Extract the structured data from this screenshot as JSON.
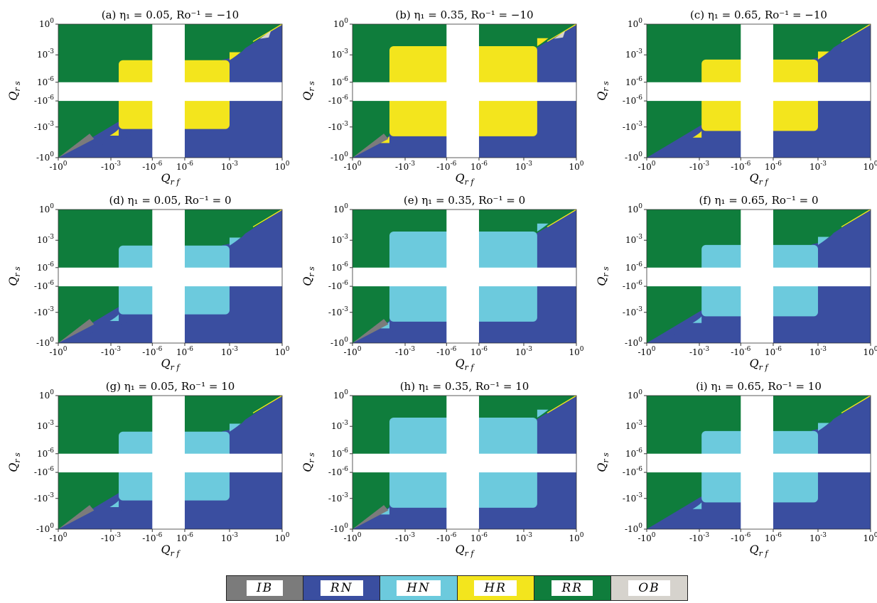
{
  "colors": {
    "IB": "#7b7b7b",
    "RN": "#3a4ea0",
    "HN": "#6ccadd",
    "HR": "#f3e51d",
    "RR": "#0f7d3c",
    "OB": "#d6d3cd",
    "gap": "#ffffff"
  },
  "legend": [
    {
      "key": "IB",
      "label": "IB"
    },
    {
      "key": "RN",
      "label": "RN"
    },
    {
      "key": "HN",
      "label": "HN"
    },
    {
      "key": "HR",
      "label": "HR"
    },
    {
      "key": "RR",
      "label": "RR"
    },
    {
      "key": "OB",
      "label": "OB"
    }
  ],
  "chart_data": [
    {
      "type": "heatmap",
      "panel": "a",
      "title": "(a) η₁ = 0.05, Ro⁻¹ = −10",
      "xlabel": "Q_rf",
      "ylabel": "Q_rs",
      "x_ticks": [
        "-10^0",
        "-10^-3",
        "-10^-6",
        "10^-6",
        "10^-3",
        "10^0"
      ],
      "y_ticks": [
        "10^0",
        "10^-3",
        "10^-6",
        "-10^-6",
        "-10^-3",
        "-10^0"
      ],
      "regions": [
        "IB",
        "RN",
        "HR",
        "RR",
        "OB"
      ],
      "middle_regime": "HR",
      "middle_extent": "narrow"
    },
    {
      "type": "heatmap",
      "panel": "b",
      "title": "(b) η₁ = 0.35, Ro⁻¹ = −10",
      "xlabel": "Q_rf",
      "ylabel": "Q_rs",
      "x_ticks": [
        "-10^0",
        "-10^-3",
        "-10^-6",
        "10^-6",
        "10^-3",
        "10^0"
      ],
      "y_ticks": [
        "10^0",
        "10^-3",
        "10^-6",
        "-10^-6",
        "-10^-3",
        "-10^0"
      ],
      "regions": [
        "IB",
        "RN",
        "HR",
        "RR",
        "OB"
      ],
      "middle_regime": "HR",
      "middle_extent": "wide"
    },
    {
      "type": "heatmap",
      "panel": "c",
      "title": "(c) η₁ = 0.65, Ro⁻¹ = −10",
      "xlabel": "Q_rf",
      "ylabel": "Q_rs",
      "x_ticks": [
        "-10^0",
        "-10^-3",
        "-10^-6",
        "10^-6",
        "10^-3",
        "10^0"
      ],
      "y_ticks": [
        "10^0",
        "10^-3",
        "10^-6",
        "-10^-6",
        "-10^-3",
        "-10^0"
      ],
      "regions": [
        "RN",
        "HR",
        "RR"
      ],
      "middle_regime": "HR",
      "middle_extent": "medium"
    },
    {
      "type": "heatmap",
      "panel": "d",
      "title": "(d) η₁ = 0.05, Ro⁻¹ = 0",
      "xlabel": "Q_rf",
      "ylabel": "Q_rs",
      "x_ticks": [
        "-10^0",
        "-10^-3",
        "-10^-6",
        "10^-6",
        "10^-3",
        "10^0"
      ],
      "y_ticks": [
        "10^0",
        "10^-3",
        "10^-6",
        "-10^-6",
        "-10^-3",
        "-10^0"
      ],
      "regions": [
        "IB",
        "RN",
        "HN",
        "RR"
      ],
      "middle_regime": "HN",
      "middle_extent": "narrow"
    },
    {
      "type": "heatmap",
      "panel": "e",
      "title": "(e) η₁ = 0.35, Ro⁻¹ = 0",
      "xlabel": "Q_rf",
      "ylabel": "Q_rs",
      "x_ticks": [
        "-10^0",
        "-10^-3",
        "-10^-6",
        "10^-6",
        "10^-3",
        "10^0"
      ],
      "y_ticks": [
        "10^0",
        "10^-3",
        "10^-6",
        "-10^-6",
        "-10^-3",
        "-10^0"
      ],
      "regions": [
        "IB",
        "RN",
        "HN",
        "RR"
      ],
      "middle_regime": "HN",
      "middle_extent": "wide"
    },
    {
      "type": "heatmap",
      "panel": "f",
      "title": "(f) η₁ = 0.65, Ro⁻¹ = 0",
      "xlabel": "Q_rf",
      "ylabel": "Q_rs",
      "x_ticks": [
        "-10^0",
        "-10^-3",
        "-10^-6",
        "10^-6",
        "10^-3",
        "10^0"
      ],
      "y_ticks": [
        "10^0",
        "10^-3",
        "10^-6",
        "-10^-6",
        "-10^-3",
        "-10^0"
      ],
      "regions": [
        "RN",
        "HN",
        "RR"
      ],
      "middle_regime": "HN",
      "middle_extent": "medium"
    },
    {
      "type": "heatmap",
      "panel": "g",
      "title": "(g) η₁ = 0.05, Ro⁻¹ = 10",
      "xlabel": "Q_rf",
      "ylabel": "Q_rs",
      "x_ticks": [
        "-10^0",
        "-10^-3",
        "-10^-6",
        "10^-6",
        "10^-3",
        "10^0"
      ],
      "y_ticks": [
        "10^0",
        "10^-3",
        "10^-6",
        "-10^-6",
        "-10^-3",
        "-10^0"
      ],
      "regions": [
        "IB",
        "RN",
        "HN",
        "RR"
      ],
      "middle_regime": "HN",
      "middle_extent": "narrow"
    },
    {
      "type": "heatmap",
      "panel": "h",
      "title": "(h) η₁ = 0.35, Ro⁻¹ = 10",
      "xlabel": "Q_rf",
      "ylabel": "Q_rs",
      "x_ticks": [
        "-10^0",
        "-10^-3",
        "-10^-6",
        "10^-6",
        "10^-3",
        "10^0"
      ],
      "y_ticks": [
        "10^0",
        "10^-3",
        "10^-6",
        "-10^-6",
        "-10^-3",
        "-10^0"
      ],
      "regions": [
        "IB",
        "RN",
        "HN",
        "RR"
      ],
      "middle_regime": "HN",
      "middle_extent": "wide"
    },
    {
      "type": "heatmap",
      "panel": "i",
      "title": "(i) η₁ = 0.65, Ro⁻¹ = 10",
      "xlabel": "Q_rf",
      "ylabel": "Q_rs",
      "x_ticks": [
        "-10^0",
        "-10^-3",
        "-10^-6",
        "10^-6",
        "10^-3",
        "10^0"
      ],
      "y_ticks": [
        "10^0",
        "10^-3",
        "10^-6",
        "-10^-6",
        "-10^-3",
        "-10^0"
      ],
      "regions": [
        "RN",
        "HN",
        "RR"
      ],
      "middle_regime": "HN",
      "middle_extent": "medium"
    }
  ]
}
